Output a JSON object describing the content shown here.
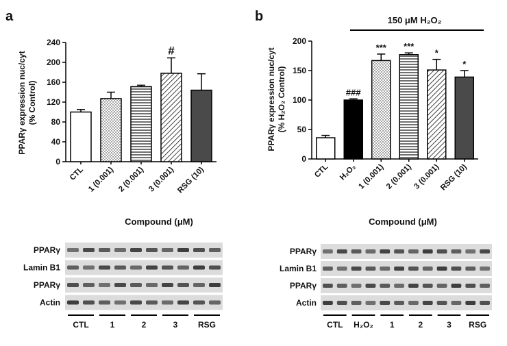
{
  "panels": [
    {
      "letter": "a"
    },
    {
      "letter": "b",
      "treatment_label": "150 μM H₂O₂"
    }
  ],
  "chart_data": [
    {
      "type": "bar",
      "panel": "a",
      "title": "",
      "xlabel": "Compound (μM)",
      "ylabel_line1": "PPARγ expression nuc/cyt",
      "ylabel_line2": "(% Control)",
      "ylim": [
        0,
        240
      ],
      "yticks": [
        0,
        40,
        80,
        120,
        160,
        200,
        240
      ],
      "categories": [
        "CTL",
        "1 (0.001)",
        "2 (0.001)",
        "3 (0.001)",
        "RSG (10)"
      ],
      "values": [
        100,
        127,
        151,
        178,
        144
      ],
      "errors": [
        5,
        13,
        3,
        31,
        33
      ],
      "fills": [
        "white",
        "dots",
        "hlines",
        "diag",
        "dark"
      ],
      "annotations": [
        "",
        "",
        "",
        "#",
        ""
      ]
    },
    {
      "type": "bar",
      "panel": "b",
      "title": "",
      "xlabel": "Compound (μM)",
      "ylabel_line1": "PPARγ expression nuc/cyt",
      "ylabel_line2": "(% H₂O₂ Control)",
      "ylim": [
        0,
        200
      ],
      "yticks": [
        0,
        50,
        100,
        150,
        200
      ],
      "categories": [
        "CTL",
        "H₂O₂",
        "1 (0.001)",
        "2 (0.001)",
        "3 (0.001)",
        "RSG (10)"
      ],
      "values": [
        36,
        100,
        167,
        177,
        151,
        139
      ],
      "errors": [
        4,
        2,
        11,
        3,
        18,
        11
      ],
      "fills": [
        "white",
        "black",
        "dots",
        "hlines",
        "diag",
        "dark"
      ],
      "annotations": [
        "",
        "###",
        "***",
        "***",
        "*",
        "*"
      ]
    }
  ],
  "western_blots": [
    {
      "panel": "a",
      "bands": [
        "PPARγ",
        "Lamin B1",
        "PPARγ",
        "Actin"
      ],
      "groups": [
        "CTL",
        "1",
        "2",
        "3",
        "RSG"
      ]
    },
    {
      "panel": "b",
      "bands": [
        "PPARγ",
        "Lamin B1",
        "PPARγ",
        "Actin"
      ],
      "groups": [
        "CTL",
        "H₂O₂",
        "1",
        "2",
        "3",
        "RSG"
      ]
    }
  ]
}
